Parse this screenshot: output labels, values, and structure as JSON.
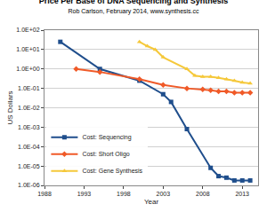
{
  "chart_data": {
    "type": "line",
    "title": "Price Per Base of DNA Sequencing and Synthesis",
    "subtitle": "Rob Carlson, February 2014, www.synthesis.cc",
    "x_label": "Year",
    "y_label": "US Dollars",
    "log": "y",
    "grid": true,
    "legend": "lower left",
    "xlim": [
      1988,
      2015
    ],
    "xticks": [
      1988,
      1993,
      1998,
      2003,
      2008,
      2013
    ],
    "ylim": [
      1e-06,
      100
    ],
    "yticks": [
      {
        "value": 100,
        "label": "1.0E+02"
      },
      {
        "value": 10,
        "label": "1.0E+01"
      },
      {
        "value": 1,
        "label": "1.0E+00"
      },
      {
        "value": 0.1,
        "label": "1.0E-01"
      },
      {
        "value": 0.01,
        "label": "1.0E-02"
      },
      {
        "value": 0.001,
        "label": "1.0E-03"
      },
      {
        "value": 0.0001,
        "label": "1.0E-04"
      },
      {
        "value": 1e-05,
        "label": "1.0E-05"
      },
      {
        "value": 1e-06,
        "label": "1.0E-06"
      }
    ],
    "series": [
      {
        "name": "Cost: Sequencing",
        "color": "#1f4e8c",
        "marker": "square",
        "x": [
          1990,
          1995,
          2000,
          2003,
          2004,
          2006,
          2009,
          2010,
          2011,
          2012,
          2013,
          2014
        ],
        "values": [
          25,
          1,
          0.25,
          0.05,
          0.02,
          0.0008,
          8e-06,
          3e-06,
          2.5e-06,
          1.8e-06,
          1.8e-06,
          1.8e-06
        ]
      },
      {
        "name": "Cost: Short Oligo",
        "color": "#f05a28",
        "marker": "diamond",
        "x": [
          1992,
          1995,
          2000,
          2003,
          2006,
          2008,
          2009,
          2010,
          2011,
          2012,
          2013,
          2014
        ],
        "values": [
          1,
          0.7,
          0.3,
          0.15,
          0.1,
          0.09,
          0.08,
          0.07,
          0.07,
          0.06,
          0.06,
          0.06
        ]
      },
      {
        "name": "Cost: Gene Synthesis",
        "color": "#f5c83a",
        "marker": "triangle-up",
        "x": [
          2000,
          2001,
          2002,
          2003,
          2006,
          2007,
          2008,
          2009,
          2010,
          2011,
          2012,
          2013,
          2014
        ],
        "values": [
          25,
          15,
          10,
          4,
          1,
          0.45,
          0.4,
          0.4,
          0.35,
          0.3,
          0.25,
          0.2,
          0.18
        ]
      }
    ]
  }
}
